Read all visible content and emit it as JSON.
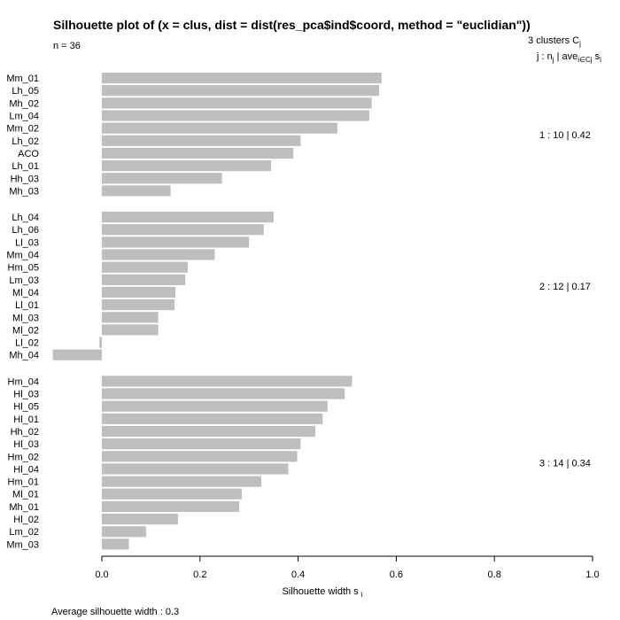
{
  "header": {
    "title": "Silhouette plot of (x = clus, dist = dist(res_pca$ind$coord, method = \"euclidian\"))",
    "subtitle": "n = 36",
    "clusters_count": "3",
    "clusters_word": "clusters",
    "clusters_symbol": "C",
    "clusters_symbol_sub": "j",
    "legend_j": "j :",
    "legend_nj": "n",
    "legend_nj_sub": "j",
    "legend_sep": "|",
    "legend_ave": "ave",
    "legend_ave_sub": "i∈Cj",
    "legend_s": "s",
    "legend_s_sub": "i"
  },
  "footer": {
    "label": "Average silhouette width :",
    "value": "0.3"
  },
  "chart_data": {
    "type": "bar",
    "orientation": "horizontal",
    "bar_color": "#bebebe",
    "xlabel": "Silhouette width s",
    "xlabel_sub": "i",
    "xlim": [
      -0.1,
      1.0
    ],
    "xticks": [
      "0.0",
      "0.2",
      "0.4",
      "0.6",
      "0.8",
      "1.0"
    ],
    "xtick_values": [
      0.0,
      0.2,
      0.4,
      0.6,
      0.8,
      1.0
    ],
    "clusters": [
      {
        "label": "1 :  10  |  0.42",
        "items": [
          {
            "name": "Mm_01",
            "value": 0.57
          },
          {
            "name": "Lh_05",
            "value": 0.565
          },
          {
            "name": "Mh_02",
            "value": 0.55
          },
          {
            "name": "Lm_04",
            "value": 0.545
          },
          {
            "name": "Mm_02",
            "value": 0.48
          },
          {
            "name": "Lh_02",
            "value": 0.405
          },
          {
            "name": "ACO",
            "value": 0.39
          },
          {
            "name": "Lh_01",
            "value": 0.345
          },
          {
            "name": "Hh_03",
            "value": 0.245
          },
          {
            "name": "Mh_03",
            "value": 0.14
          }
        ]
      },
      {
        "label": "2 :  12  |  0.17",
        "items": [
          {
            "name": "Lh_04",
            "value": 0.35
          },
          {
            "name": "Lh_06",
            "value": 0.33
          },
          {
            "name": "Ll_03",
            "value": 0.3
          },
          {
            "name": "Mm_04",
            "value": 0.23
          },
          {
            "name": "Hm_05",
            "value": 0.175
          },
          {
            "name": "Lm_03",
            "value": 0.17
          },
          {
            "name": "Ml_04",
            "value": 0.15
          },
          {
            "name": "Ll_01",
            "value": 0.148
          },
          {
            "name": "Ml_03",
            "value": 0.115
          },
          {
            "name": "Ml_02",
            "value": 0.115
          },
          {
            "name": "Ll_02",
            "value": -0.005
          },
          {
            "name": "Mh_04",
            "value": -0.1
          }
        ]
      },
      {
        "label": "3 :  14  |  0.34",
        "items": [
          {
            "name": "Hm_04",
            "value": 0.51
          },
          {
            "name": "Hl_03",
            "value": 0.495
          },
          {
            "name": "Hl_05",
            "value": 0.46
          },
          {
            "name": "Hl_01",
            "value": 0.45
          },
          {
            "name": "Hh_02",
            "value": 0.435
          },
          {
            "name": "Hl_03",
            "value": 0.405
          },
          {
            "name": "Hm_02",
            "value": 0.398
          },
          {
            "name": "Hl_04",
            "value": 0.38
          },
          {
            "name": "Hm_01",
            "value": 0.325
          },
          {
            "name": "Ml_01",
            "value": 0.285
          },
          {
            "name": "Mh_01",
            "value": 0.28
          },
          {
            "name": "Hl_02",
            "value": 0.155
          },
          {
            "name": "Lm_02",
            "value": 0.09
          },
          {
            "name": "Mm_03",
            "value": 0.055
          }
        ]
      }
    ]
  }
}
